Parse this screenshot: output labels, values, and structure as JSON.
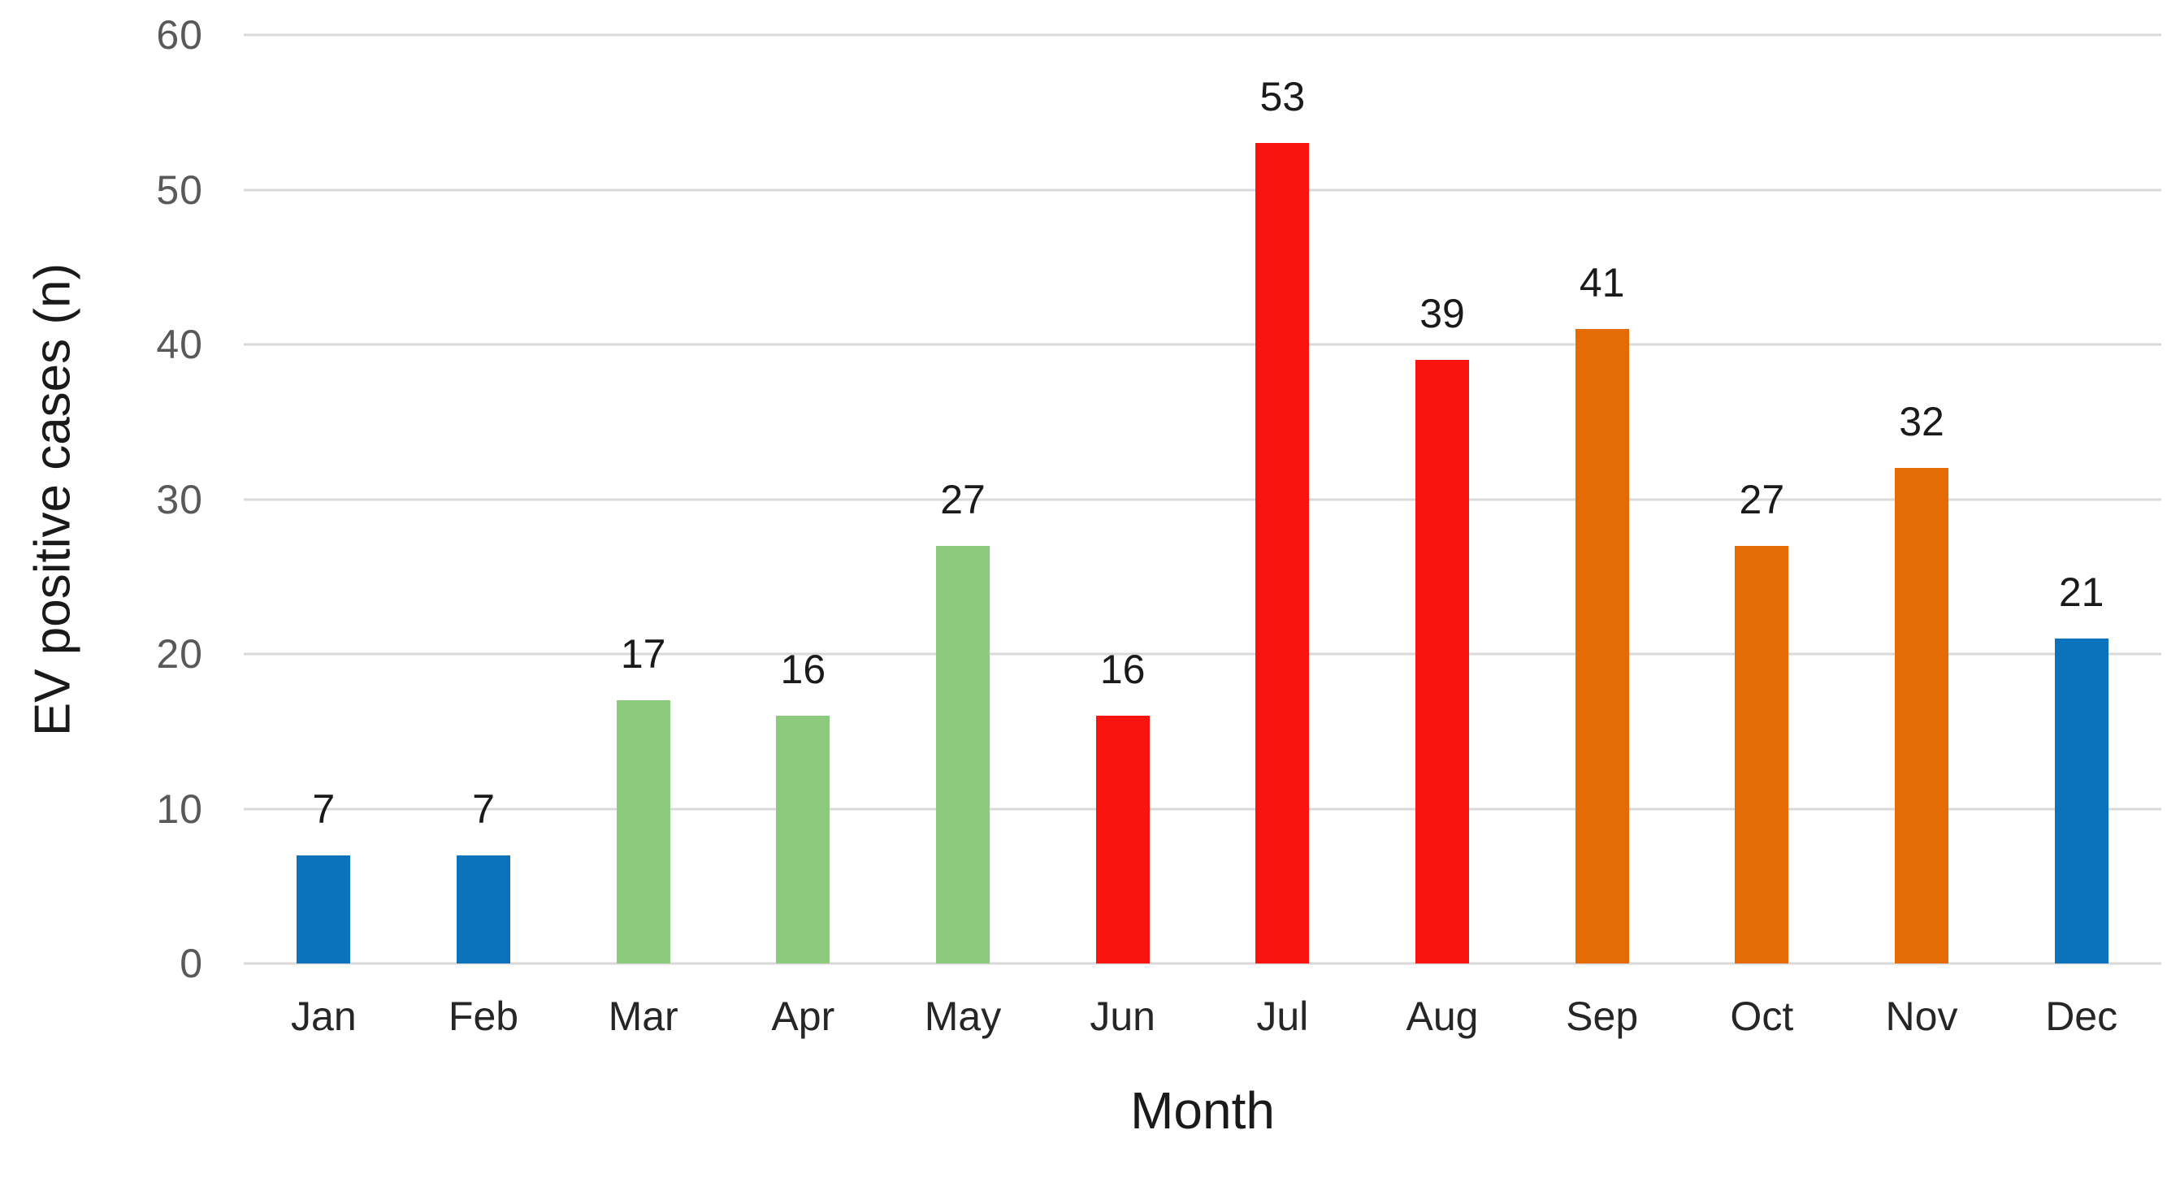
{
  "figure": {
    "background_color": "#FFFFFF",
    "grid_color": "#D9D9D9",
    "tick_label_color": "#595959",
    "axis_title_color": "#1A1A1A",
    "value_label_color": "#1A1A1A"
  },
  "chart_data": {
    "type": "bar",
    "title": "",
    "xlabel": "Month",
    "ylabel": "EV positive cases (n)",
    "categories": [
      "Jan",
      "Feb",
      "Mar",
      "Apr",
      "May",
      "Jun",
      "Jul",
      "Aug",
      "Sep",
      "Oct",
      "Nov",
      "Dec"
    ],
    "values": [
      7,
      7,
      17,
      16,
      27,
      16,
      53,
      39,
      41,
      27,
      32,
      21
    ],
    "data_labels": [
      "7",
      "7",
      "17",
      "16",
      "27",
      "16",
      "53",
      "39",
      "41",
      "27",
      "32",
      "21"
    ],
    "bar_colors": [
      "#0B73BC",
      "#0B73BC",
      "#8CCB7E",
      "#8CCB7E",
      "#8CCB7E",
      "#FA1410",
      "#FA1410",
      "#FA1410",
      "#E56C04",
      "#E56C04",
      "#E56C04",
      "#0B73BC"
    ],
    "ylim": [
      0,
      60
    ],
    "yticks": [
      0,
      10,
      20,
      30,
      40,
      50,
      60
    ],
    "grid": true,
    "legend": false
  }
}
